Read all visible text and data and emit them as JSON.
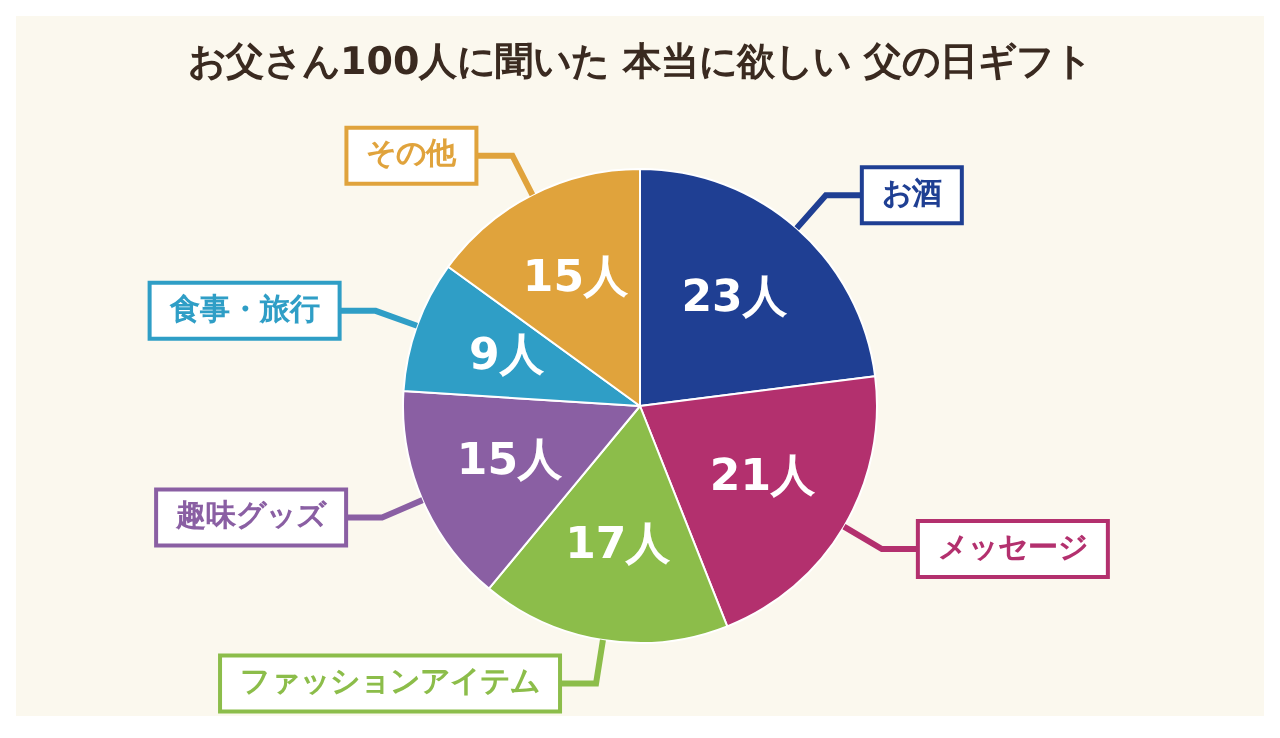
{
  "chart_data": {
    "type": "pie",
    "title": "お父さん100人に聞いた 本当に欲しい 父の日ギフト",
    "categories": [
      "お酒",
      "メッセージ",
      "ファッションアイテム",
      "趣味グッズ",
      "食事・旅行",
      "その他"
    ],
    "values": [
      23,
      21,
      17,
      15,
      9,
      15
    ],
    "colors": [
      "#1f3f93",
      "#b3306e",
      "#8cbd4a",
      "#8a5fa3",
      "#2f9ec6",
      "#e0a33c"
    ],
    "value_labels": [
      "23人",
      "21人",
      "17人",
      "15人",
      "9人",
      "15人"
    ]
  }
}
